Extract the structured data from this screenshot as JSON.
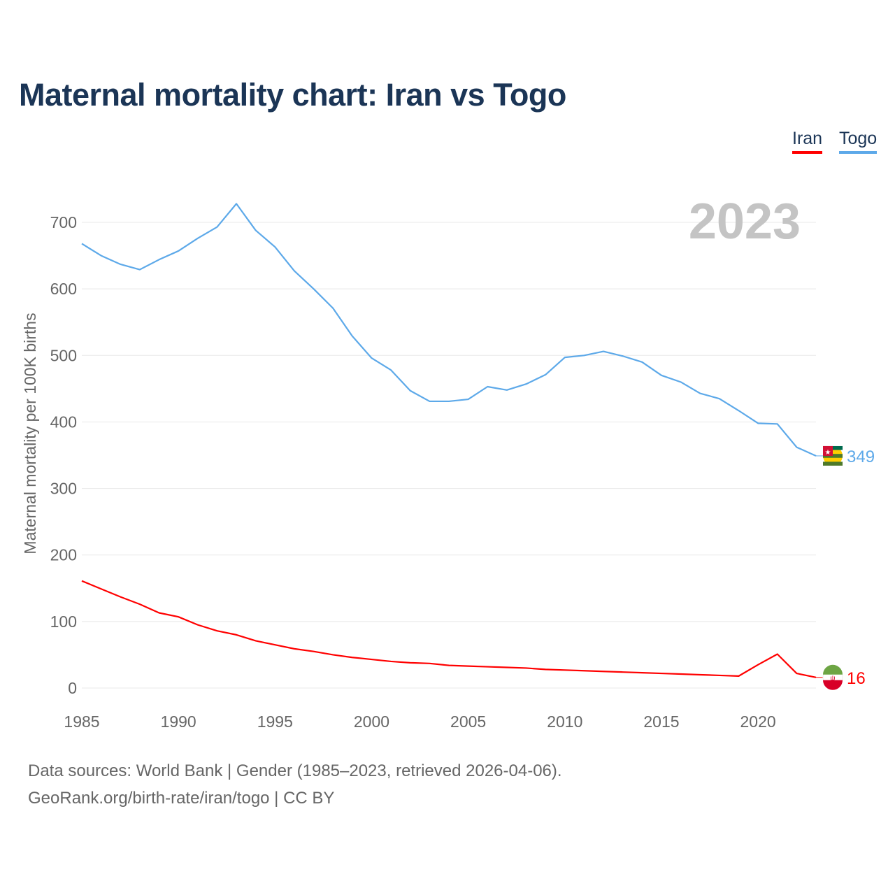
{
  "title": "Maternal mortality chart: Iran vs Togo",
  "year_label": "2023",
  "legend": [
    {
      "name": "Iran",
      "color": "#ff0000"
    },
    {
      "name": "Togo",
      "color": "#5da9e9"
    }
  ],
  "footer": {
    "line1": "Data sources: World Bank | Gender (1985–2023, retrieved 2026-04-06).",
    "line2": "GeoRank.org/birth-rate/iran/togo | CC BY"
  },
  "chart_data": {
    "type": "line",
    "title": "Maternal mortality chart: Iran vs Togo",
    "xlabel": "",
    "ylabel": "Maternal mortality per 100K births",
    "xlim": [
      1985,
      2023
    ],
    "ylim": [
      0,
      750
    ],
    "xticks": [
      "1985",
      "1990",
      "1995",
      "2000",
      "2005",
      "2010",
      "2015",
      "2020"
    ],
    "yticks": [
      "0",
      "100",
      "200",
      "300",
      "400",
      "500",
      "600",
      "700"
    ],
    "grid": true,
    "legend_position": "top-right",
    "x": [
      1985,
      1986,
      1987,
      1988,
      1989,
      1990,
      1991,
      1992,
      1993,
      1994,
      1995,
      1996,
      1997,
      1998,
      1999,
      2000,
      2001,
      2002,
      2003,
      2004,
      2005,
      2006,
      2007,
      2008,
      2009,
      2010,
      2011,
      2012,
      2013,
      2014,
      2015,
      2016,
      2017,
      2018,
      2019,
      2020,
      2021,
      2022,
      2023
    ],
    "series": [
      {
        "name": "Togo",
        "color": "#5da9e9",
        "end_label": "349",
        "values": [
          668,
          650,
          637,
          629,
          644,
          657,
          676,
          693,
          728,
          688,
          663,
          627,
          600,
          571,
          529,
          496,
          478,
          447,
          431,
          431,
          434,
          453,
          448,
          457,
          471,
          497,
          500,
          506,
          499,
          490,
          470,
          460,
          443,
          435,
          417,
          398,
          397,
          362,
          349
        ]
      },
      {
        "name": "Iran",
        "color": "#ff0000",
        "end_label": "16",
        "values": [
          161,
          149,
          137,
          126,
          113,
          107,
          95,
          86,
          80,
          71,
          65,
          59,
          55,
          50,
          46,
          43,
          40,
          38,
          37,
          34,
          33,
          32,
          31,
          30,
          28,
          27,
          26,
          25,
          24,
          23,
          22,
          21,
          20,
          19,
          18,
          35,
          51,
          22,
          16
        ]
      }
    ]
  }
}
